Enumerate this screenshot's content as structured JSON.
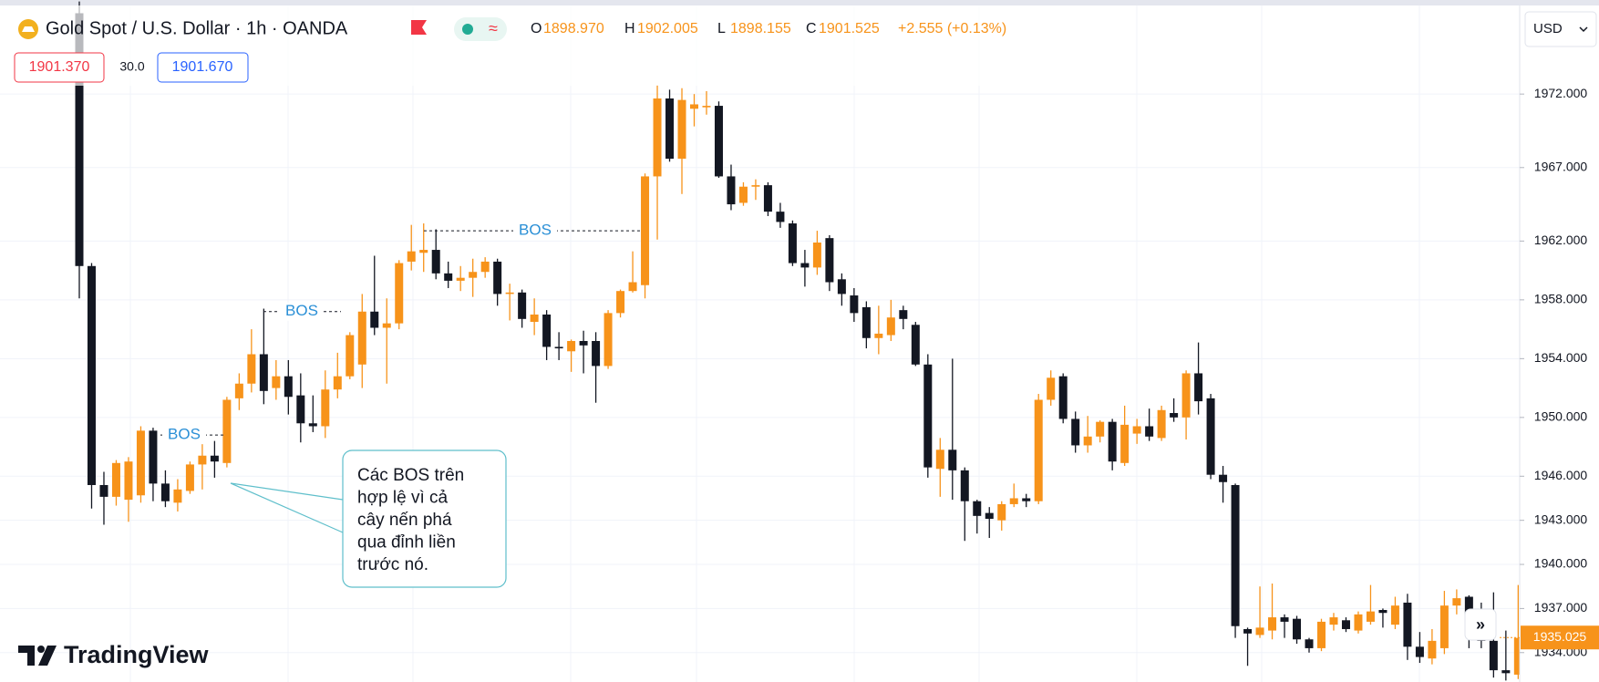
{
  "header": {
    "symbol": "Gold Spot / U.S. Dollar · 1h · OANDA",
    "ohlc": [
      {
        "key": "O",
        "value": "1898.970"
      },
      {
        "key": "H",
        "value": "1902.005"
      },
      {
        "key": "L",
        "value": "1898.155"
      },
      {
        "key": "C",
        "value": "1901.525"
      }
    ],
    "change": "+2.555 (+0.13%)",
    "bid": "1901.370",
    "spread": "30.0",
    "ask": "1901.670",
    "currency": "USD"
  },
  "callout": {
    "lines": [
      "Các BOS trên",
      "hợp lệ vì cả",
      "cây nến phá",
      "qua đỉnh liền",
      "trước nó."
    ]
  },
  "logo": "TradingView",
  "chart_data": {
    "type": "candlestick",
    "up_color": "#f7931a",
    "down_color": "#131722",
    "grid": true,
    "ylim": [
      1932.0,
      1978.4
    ],
    "yticks": [
      {
        "value": 1972,
        "label": "1972.000"
      },
      {
        "value": 1967,
        "label": "1967.000"
      },
      {
        "value": 1962,
        "label": "1962.000"
      },
      {
        "value": 1958,
        "label": "1958.000"
      },
      {
        "value": 1954,
        "label": "1954.000"
      },
      {
        "value": 1950,
        "label": "1950.000"
      },
      {
        "value": 1946,
        "label": "1946.000"
      },
      {
        "value": 1943,
        "label": "1943.000"
      },
      {
        "value": 1940,
        "label": "1940.000"
      },
      {
        "value": 1937,
        "label": "1937.000"
      },
      {
        "value": 1934,
        "label": "1934.000"
      }
    ],
    "last_price": 1935.025,
    "annotations": [
      {
        "label": "BOS",
        "value": 1948.8
      },
      {
        "label": "BOS",
        "value": 1957.2
      },
      {
        "label": "BOS",
        "value": 1962.7
      }
    ],
    "open": [
      1977.5,
      1960.3,
      1945.4,
      1944.6,
      1944.4,
      1944.7,
      1949.1,
      1945.5,
      1944.2,
      1945.0,
      1946.8,
      1947.4,
      1946.9,
      1951.3,
      1952.3,
      1954.3,
      1952.0,
      1952.8,
      1951.5,
      1949.6,
      1949.4,
      1951.9,
      1952.8,
      1953.6,
      1957.2,
      1956.1,
      1956.4,
      1960.6,
      1961.2,
      1961.4,
      1959.8,
      1959.3,
      1959.5,
      1959.9,
      1960.6,
      1958.4,
      1958.5,
      1956.5,
      1957.0,
      1954.8,
      1954.5,
      1955.2,
      1955.2,
      1953.5,
      1957.1,
      1958.6,
      1959.0,
      1966.4,
      1971.7,
      1967.6,
      1971.0,
      1971.1,
      1971.2,
      1966.4,
      1964.6,
      1965.7,
      1965.8,
      1964.0,
      1963.2,
      1960.5,
      1960.2,
      1962.2,
      1959.4,
      1958.3,
      1957.5,
      1955.4,
      1955.6,
      1957.3,
      1956.3,
      1953.6,
      1946.5,
      1947.8,
      1946.4,
      1944.3,
      1943.5,
      1943.0,
      1944.1,
      1944.5,
      1944.3,
      1951.2,
      1952.8,
      1949.9,
      1948.1,
      1948.7,
      1949.7,
      1946.9,
      1948.9,
      1949.4,
      1948.6,
      1950.3,
      1950.0,
      1953.0,
      1951.3,
      1946.1,
      1945.4,
      1935.6,
      1935.2,
      1935.5,
      1936.4,
      1936.3,
      1934.9,
      1934.3,
      1935.9,
      1936.2,
      1935.5,
      1936.1,
      1936.9,
      1935.9,
      1937.4,
      1934.4,
      1933.6,
      1934.3,
      1937.2,
      1937.8,
      1935.6,
      1934.8,
      1932.8,
      1932.5
    ],
    "high": [
      1978.3,
      1960.5,
      1946.3,
      1947.1,
      1947.3,
      1949.4,
      1949.3,
      1946.4,
      1945.8,
      1947.0,
      1948.3,
      1948.4,
      1951.4,
      1953.0,
      1956.0,
      1957.4,
      1953.9,
      1953.9,
      1953.0,
      1951.5,
      1953.2,
      1954.4,
      1955.8,
      1958.4,
      1961.0,
      1958.1,
      1960.7,
      1963.1,
      1963.2,
      1962.8,
      1960.6,
      1960.3,
      1960.8,
      1960.9,
      1960.8,
      1959.1,
      1958.7,
      1958.1,
      1957.3,
      1955.8,
      1955.3,
      1955.9,
      1955.8,
      1957.3,
      1958.7,
      1961.3,
      1966.6,
      1972.6,
      1972.3,
      1972.4,
      1972.0,
      1972.2,
      1971.5,
      1967.2,
      1966.0,
      1966.2,
      1966.0,
      1964.6,
      1963.4,
      1961.4,
      1962.7,
      1962.4,
      1959.8,
      1958.8,
      1957.9,
      1957.6,
      1958.0,
      1957.6,
      1956.5,
      1954.3,
      1948.6,
      1954.0,
      1946.6,
      1944.4,
      1943.9,
      1944.3,
      1945.5,
      1944.8,
      1951.6,
      1953.2,
      1953.0,
      1950.4,
      1950.1,
      1949.8,
      1949.9,
      1950.8,
      1949.9,
      1950.6,
      1950.8,
      1951.3,
      1953.2,
      1955.1,
      1951.6,
      1946.7,
      1945.5,
      1935.7,
      1938.5,
      1938.7,
      1936.6,
      1936.5,
      1935.0,
      1936.3,
      1936.7,
      1936.4,
      1936.8,
      1938.6,
      1937.0,
      1937.8,
      1938.0,
      1935.4,
      1935.6,
      1938.2,
      1938.3,
      1937.9,
      1937.4,
      1938.1,
      1935.5,
      1938.6
    ],
    "low": [
      1958.1,
      1943.8,
      1942.7,
      1944.0,
      1942.9,
      1944.2,
      1944.3,
      1943.9,
      1943.6,
      1944.8,
      1945.1,
      1945.9,
      1946.6,
      1950.5,
      1951.7,
      1950.9,
      1951.2,
      1950.2,
      1948.3,
      1949.0,
      1948.6,
      1951.3,
      1952.6,
      1952.0,
      1955.6,
      1952.3,
      1956.0,
      1960.0,
      1959.9,
      1959.4,
      1958.8,
      1958.6,
      1958.2,
      1959.5,
      1957.6,
      1956.6,
      1956.1,
      1955.6,
      1953.9,
      1953.9,
      1953.1,
      1953.0,
      1951.0,
      1953.3,
      1956.8,
      1958.5,
      1958.1,
      1962.1,
      1967.4,
      1965.2,
      1969.8,
      1970.6,
      1966.3,
      1964.1,
      1964.4,
      1964.8,
      1963.7,
      1962.9,
      1960.3,
      1958.9,
      1959.7,
      1958.6,
      1957.6,
      1956.5,
      1954.7,
      1954.3,
      1955.2,
      1956.0,
      1953.5,
      1945.9,
      1944.6,
      1944.4,
      1941.6,
      1942.1,
      1941.8,
      1942.3,
      1943.9,
      1943.9,
      1944.1,
      1950.8,
      1949.6,
      1947.6,
      1947.6,
      1948.3,
      1946.4,
      1946.7,
      1948.2,
      1948.4,
      1948.4,
      1949.7,
      1948.5,
      1950.2,
      1945.8,
      1944.2,
      1935.0,
      1933.1,
      1935.0,
      1934.9,
      1935.0,
      1934.6,
      1934.0,
      1934.1,
      1935.5,
      1935.4,
      1935.3,
      1935.9,
      1935.7,
      1935.6,
      1933.5,
      1933.3,
      1933.2,
      1933.9,
      1936.6,
      1934.3,
      1934.3,
      1932.3,
      1932.1,
      1932.2
    ],
    "close": [
      1960.3,
      1945.4,
      1944.6,
      1946.9,
      1947.0,
      1949.1,
      1945.5,
      1944.3,
      1945.1,
      1946.8,
      1947.4,
      1947.0,
      1951.2,
      1952.3,
      1954.3,
      1951.8,
      1952.8,
      1951.4,
      1949.6,
      1949.4,
      1951.9,
      1952.8,
      1955.6,
      1957.2,
      1956.1,
      1956.4,
      1960.5,
      1961.3,
      1961.4,
      1959.8,
      1959.3,
      1959.5,
      1959.9,
      1960.6,
      1958.4,
      1958.5,
      1956.7,
      1957.0,
      1954.8,
      1954.7,
      1955.2,
      1954.9,
      1953.5,
      1957.1,
      1958.6,
      1959.2,
      1966.4,
      1971.7,
      1967.6,
      1971.6,
      1971.3,
      1971.2,
      1966.4,
      1964.5,
      1965.7,
      1965.8,
      1964.0,
      1963.3,
      1960.5,
      1960.2,
      1961.9,
      1959.2,
      1958.4,
      1957.1,
      1955.4,
      1955.7,
      1956.8,
      1956.7,
      1953.6,
      1946.6,
      1947.8,
      1946.4,
      1944.3,
      1943.3,
      1943.1,
      1944.1,
      1944.5,
      1944.3,
      1951.2,
      1952.7,
      1949.9,
      1948.1,
      1948.7,
      1949.7,
      1947.0,
      1949.5,
      1949.4,
      1948.7,
      1950.5,
      1950.0,
      1953.0,
      1951.1,
      1946.1,
      1945.6,
      1935.8,
      1935.3,
      1935.7,
      1936.4,
      1936.1,
      1934.9,
      1934.3,
      1936.1,
      1936.4,
      1935.6,
      1936.6,
      1936.8,
      1936.7,
      1937.2,
      1934.4,
      1933.7,
      1934.8,
      1937.2,
      1937.7,
      1935.6,
      1934.8,
      1932.8,
      1932.6,
      1935.0
    ]
  }
}
